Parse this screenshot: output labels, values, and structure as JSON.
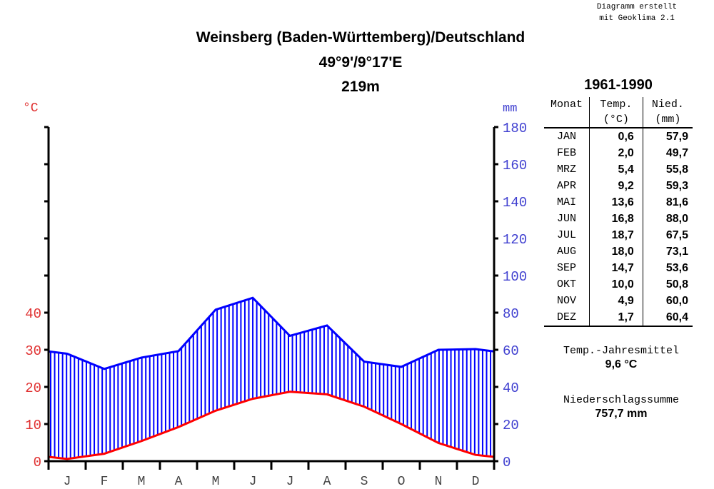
{
  "credit": {
    "line1": "Diagramm erstellt",
    "line2": "mit Geoklima 2.1"
  },
  "header": {
    "station": "Weinsberg (Baden-Württemberg)/Deutschland",
    "coordinates": "49°9'/9°17'E",
    "elevation": "219m"
  },
  "axes": {
    "left_unit": "°C",
    "right_unit": "mm",
    "left_ticks": [
      "0",
      "10",
      "20",
      "30",
      "40"
    ],
    "right_ticks": [
      "0",
      "20",
      "40",
      "60",
      "80",
      "100",
      "120",
      "140",
      "160",
      "180"
    ],
    "month_letters": [
      "J",
      "F",
      "M",
      "A",
      "M",
      "J",
      "J",
      "A",
      "S",
      "O",
      "N",
      "D"
    ]
  },
  "colors": {
    "temperature": "#ff0000",
    "precipitation": "#0000ff",
    "temp_axis_text": "#e03030",
    "precip_axis_text": "#4040d0",
    "axis": "#000000"
  },
  "table": {
    "period": "1961-1990",
    "headers": {
      "month": "Monat",
      "temp": "Temp.",
      "temp_unit": "(°C)",
      "precip": "Nied.",
      "precip_unit": "(mm)"
    },
    "rows": [
      {
        "month": "JAN",
        "temp": "0,6",
        "precip": "57,9"
      },
      {
        "month": "FEB",
        "temp": "2,0",
        "precip": "49,7"
      },
      {
        "month": "MRZ",
        "temp": "5,4",
        "precip": "55,8"
      },
      {
        "month": "APR",
        "temp": "9,2",
        "precip": "59,3"
      },
      {
        "month": "MAI",
        "temp": "13,6",
        "precip": "81,6"
      },
      {
        "month": "JUN",
        "temp": "16,8",
        "precip": "88,0"
      },
      {
        "month": "JUL",
        "temp": "18,7",
        "precip": "67,5"
      },
      {
        "month": "AUG",
        "temp": "18,0",
        "precip": "73,1"
      },
      {
        "month": "SEP",
        "temp": "14,7",
        "precip": "53,6"
      },
      {
        "month": "OKT",
        "temp": "10,0",
        "precip": "50,8"
      },
      {
        "month": "NOV",
        "temp": "4,9",
        "precip": "60,0"
      },
      {
        "month": "DEZ",
        "temp": "1,7",
        "precip": "60,4"
      }
    ]
  },
  "summary": {
    "temp_label": "Temp.-Jahresmittel",
    "temp_value": "9,6 °C",
    "precip_label": "Niederschlagssumme",
    "precip_value": "757,7 mm"
  },
  "chart_data": {
    "type": "line",
    "title": "Weinsberg (Baden-Württemberg)/Deutschland — 49°9'/9°17'E — 219m",
    "subtitle": "1961-1990",
    "categories": [
      "J",
      "F",
      "M",
      "A",
      "M",
      "J",
      "J",
      "A",
      "S",
      "O",
      "N",
      "D"
    ],
    "series": [
      {
        "name": "Temperatur (°C)",
        "axis": "left",
        "color": "#ff0000",
        "values": [
          0.6,
          2.0,
          5.4,
          9.2,
          13.6,
          16.8,
          18.7,
          18.0,
          14.7,
          10.0,
          4.9,
          1.7
        ]
      },
      {
        "name": "Niederschlag (mm)",
        "axis": "right",
        "color": "#0000ff",
        "values": [
          57.9,
          49.7,
          55.8,
          59.3,
          81.6,
          88.0,
          67.5,
          73.1,
          53.6,
          50.8,
          60.0,
          60.4
        ]
      }
    ],
    "xlabel": "",
    "ylabel_left": "°C",
    "ylabel_right": "mm",
    "ylim_left": [
      0,
      40
    ],
    "ylim_right": [
      0,
      180
    ],
    "fill": "vertical blue hatching between precipitation and temperature curves (humid)",
    "grid": false,
    "legend": "none"
  }
}
